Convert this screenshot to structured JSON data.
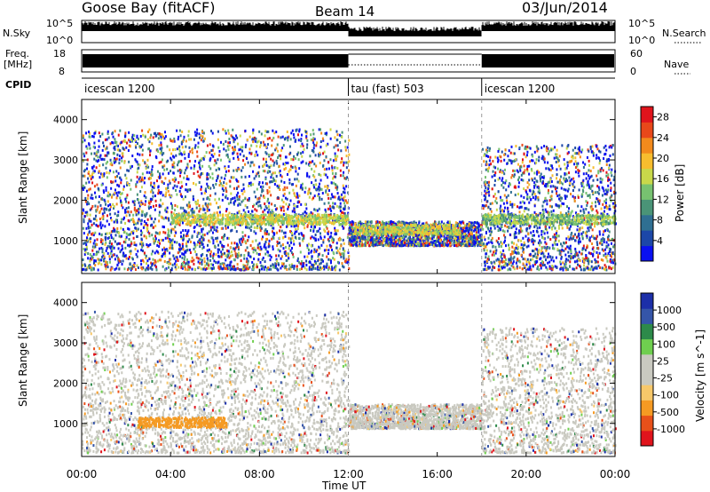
{
  "header": {
    "station": "Goose Bay (fitACF)",
    "beam": "Beam 14",
    "date": "03/Jun/2014"
  },
  "noise_panel": {
    "left_label": "N.Sky",
    "left_ticks": [
      "10^5",
      "10^0"
    ],
    "right_label": "N.Search",
    "right_ticks": [
      "10^5",
      "10^0"
    ]
  },
  "freq_panel": {
    "left_label_1": "Freq.",
    "left_label_2": "[MHz]",
    "left_ticks": [
      "18",
      "8"
    ],
    "right_label": "Nave",
    "right_ticks": [
      "60",
      "0"
    ]
  },
  "cpid_panel": {
    "label": "CPID",
    "segments": [
      {
        "name": "icescan 1200",
        "start_hour": 0
      },
      {
        "name": "tau (fast) 503",
        "start_hour": 12
      },
      {
        "name": "icescan 1200",
        "start_hour": 18
      }
    ]
  },
  "colors": {
    "power_scale": [
      "#0a10f0",
      "#1c47a8",
      "#2f6f92",
      "#4a9477",
      "#77c270",
      "#c8d84a",
      "#f7bd2e",
      "#f28a1c",
      "#e8481a",
      "#e0141c"
    ],
    "velocity_scale": [
      "#e0141c",
      "#e8501a",
      "#f59a23",
      "#f7c86a",
      "#c9c9c0",
      "#c9c9c0",
      "#6fcf4f",
      "#2d8a4a",
      "#3555a8",
      "#1c2fa8"
    ],
    "dotted_trace": "#000000"
  },
  "chart_data": [
    {
      "type": "heatmap",
      "title": "",
      "xlabel": "",
      "ylabel": "Slant Range [km]",
      "xlim_hours": [
        0,
        24
      ],
      "ylim": [
        180,
        4500
      ],
      "y_ticks": [
        1000,
        2000,
        3000,
        4000
      ],
      "colorbar_label": "Power [dB]",
      "colorbar_ticks": [
        4,
        8,
        12,
        16,
        20,
        24,
        28
      ],
      "colorbar_range": [
        0,
        30
      ],
      "scatter_regions": [
        {
          "from_hour": 0.0,
          "to_hour": 12.0,
          "range_low": 300,
          "range_high": 3800,
          "dominant_power_db": 8
        },
        {
          "from_hour": 12.0,
          "to_hour": 18.0,
          "range_low": 900,
          "range_high": 1500,
          "dominant_power_db": 12
        },
        {
          "from_hour": 18.0,
          "to_hour": 24.0,
          "range_low": 300,
          "range_high": 3400,
          "dominant_power_db": 8
        }
      ],
      "bands": [
        {
          "from_hour": 4.0,
          "to_hour": 12.0,
          "range_center": 1550,
          "power_db": 14
        },
        {
          "from_hour": 12.2,
          "to_hour": 17.0,
          "range_center": 1300,
          "power_db": 14
        },
        {
          "from_hour": 18.0,
          "to_hour": 24.0,
          "range_center": 1550,
          "power_db": 12
        }
      ]
    },
    {
      "type": "heatmap",
      "title": "",
      "xlabel": "Time UT",
      "ylabel": "Slant Range [km]",
      "xlim_hours": [
        0,
        24
      ],
      "ylim": [
        180,
        4500
      ],
      "y_ticks": [
        1000,
        2000,
        3000,
        4000
      ],
      "x_ticks": [
        "00:00",
        "04:00",
        "08:00",
        "12:00",
        "16:00",
        "20:00",
        "00:00"
      ],
      "colorbar_label": "Velocity [m s^-1]",
      "colorbar_ticks": [
        1000,
        500,
        100,
        25,
        -25,
        -100,
        -500,
        -1000
      ],
      "scatter_regions": [
        {
          "from_hour": 0.0,
          "to_hour": 12.0,
          "range_low": 300,
          "range_high": 3800,
          "dominant_velocity": 0
        },
        {
          "from_hour": 12.0,
          "to_hour": 18.0,
          "range_low": 900,
          "range_high": 1500,
          "dominant_velocity": 0
        },
        {
          "from_hour": 18.0,
          "to_hour": 24.0,
          "range_low": 300,
          "range_high": 3400,
          "dominant_velocity": 0
        }
      ],
      "bands": [
        {
          "from_hour": 2.5,
          "to_hour": 6.5,
          "range_center": 1050,
          "velocity": -300
        }
      ]
    }
  ]
}
